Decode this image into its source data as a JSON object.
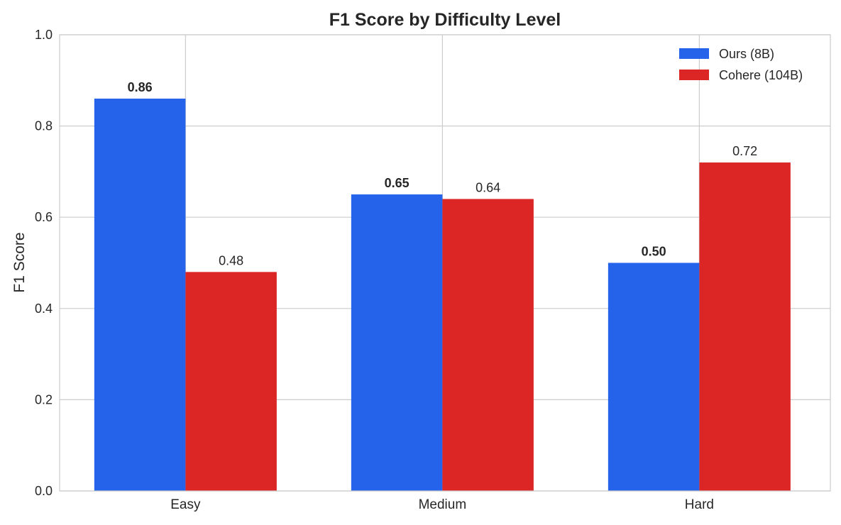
{
  "chart_data": {
    "type": "bar",
    "title": "F1 Score by Difficulty Level",
    "xlabel": "",
    "ylabel": "F1 Score",
    "categories": [
      "Easy",
      "Medium",
      "Hard"
    ],
    "series": [
      {
        "name": "Ours (8B)",
        "values": [
          0.86,
          0.65,
          0.5
        ],
        "color": "#2563eb",
        "labels": [
          "0.86",
          "0.65",
          "0.50"
        ],
        "label_bold": true
      },
      {
        "name": "Cohere (104B)",
        "values": [
          0.48,
          0.64,
          0.72
        ],
        "color": "#dc2626",
        "labels": [
          "0.48",
          "0.64",
          "0.72"
        ],
        "label_bold": false
      }
    ],
    "ylim": [
      0,
      1.0
    ],
    "yticks": [
      "0.0",
      "0.2",
      "0.4",
      "0.6",
      "0.8",
      "1.0"
    ],
    "grid": true,
    "legend_position": "top-right"
  }
}
